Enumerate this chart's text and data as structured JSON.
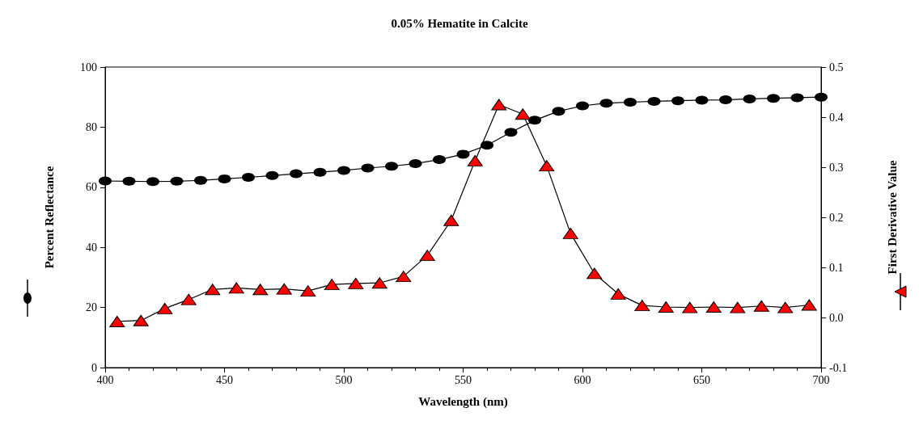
{
  "chart_data": {
    "type": "line",
    "title": "0.05% Hematite in Calcite",
    "xlabel": "Wavelength (nm)",
    "ylabel": "Percent Reflectance",
    "y2label": "First Derivative Value",
    "xlim": [
      400,
      700
    ],
    "xticks": [
      400,
      450,
      500,
      550,
      600,
      650,
      700
    ],
    "ylim": [
      0,
      100
    ],
    "yticks": [
      0,
      20,
      40,
      60,
      80,
      100
    ],
    "y2lim": [
      -0.1,
      0.5
    ],
    "y2ticks": [
      {
        "value": -0.1,
        "label": "-0.1"
      },
      {
        "value": 0,
        "label": "0.0"
      },
      {
        "value": 0.1,
        "label": "0.1"
      },
      {
        "value": 0.2,
        "label": "0.2"
      },
      {
        "value": 0.3,
        "label": "0.3"
      },
      {
        "value": 0.4,
        "label": "0.4"
      },
      {
        "value": 0.5,
        "label": "0.5"
      }
    ],
    "grid": false,
    "line_style": "solid",
    "series": [
      {
        "color": "#000000",
        "marker": "circle",
        "x": [
          400,
          410,
          420,
          430,
          440,
          450,
          460,
          470,
          480,
          490,
          500,
          510,
          520,
          530,
          540,
          550,
          560,
          570,
          580,
          590,
          600,
          610,
          620,
          630,
          640,
          650,
          660,
          670,
          680,
          690,
          700
        ],
        "values": [
          62.1,
          62.0,
          61.9,
          62.0,
          62.3,
          62.8,
          63.3,
          63.9,
          64.5,
          65.0,
          65.6,
          66.4,
          67.0,
          67.9,
          69.2,
          71.0,
          74.0,
          78.3,
          82.3,
          85.3,
          87.1,
          88.0,
          88.3,
          88.6,
          88.8,
          89.0,
          89.1,
          89.4,
          89.6,
          89.8,
          90.0
        ]
      },
      {
        "color": "#ff0000",
        "marker": "triangle",
        "axis": "y2",
        "x": [
          405,
          415,
          425,
          435,
          445,
          455,
          465,
          475,
          485,
          495,
          505,
          515,
          525,
          535,
          545,
          555,
          565,
          575,
          585,
          595,
          605,
          615,
          625,
          635,
          645,
          655,
          665,
          675,
          685,
          695
        ],
        "values": [
          -0.008,
          -0.006,
          0.018,
          0.036,
          0.056,
          0.059,
          0.056,
          0.057,
          0.053,
          0.066,
          0.068,
          0.069,
          0.082,
          0.124,
          0.194,
          0.313,
          0.425,
          0.406,
          0.303,
          0.168,
          0.088,
          0.047,
          0.024,
          0.021,
          0.02,
          0.021,
          0.02,
          0.023,
          0.02,
          0.025
        ]
      }
    ]
  }
}
